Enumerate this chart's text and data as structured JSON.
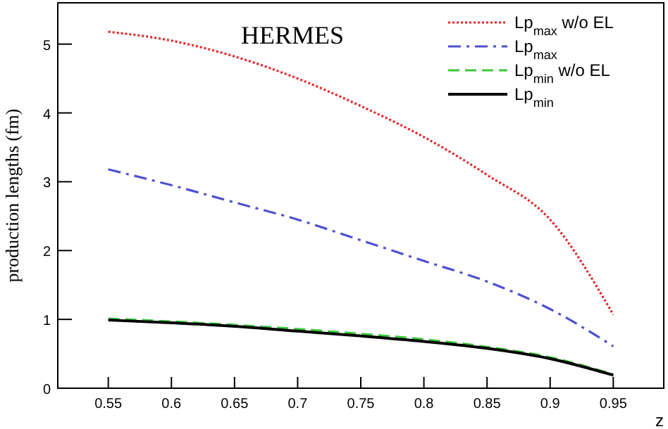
{
  "chart_data": {
    "type": "line",
    "xlabel": "z",
    "ylabel": "production lengths (fm)",
    "annotations": [
      "HERMES"
    ],
    "x": [
      0.55,
      0.6,
      0.65,
      0.7,
      0.75,
      0.8,
      0.85,
      0.9,
      0.95
    ],
    "series": [
      {
        "name": "Lp$_{max}$ w/o EL",
        "color": "#e8262a",
        "line_style": "dotted",
        "values": [
          5.18,
          5.05,
          4.82,
          4.5,
          4.1,
          3.65,
          3.1,
          2.45,
          1.07
        ]
      },
      {
        "name": "Lp$_{max}$",
        "color": "#5050d0",
        "line_style": "dashdot",
        "values": [
          3.18,
          2.95,
          2.7,
          2.45,
          2.15,
          1.85,
          1.55,
          1.15,
          0.61
        ]
      },
      {
        "name": "Lp$_{min}$ w/o EL",
        "color": "#3cc83c",
        "line_style": "dashed",
        "values": [
          1.01,
          0.97,
          0.92,
          0.86,
          0.79,
          0.71,
          0.6,
          0.45,
          0.2
        ]
      },
      {
        "name": "Lp$_{min}$",
        "color": "#000000",
        "line_style": "solid",
        "values": [
          0.99,
          0.95,
          0.9,
          0.83,
          0.76,
          0.68,
          0.58,
          0.43,
          0.19
        ]
      }
    ],
    "xlim": [
      0.51,
      0.99
    ],
    "ylim": [
      0,
      5.6
    ],
    "xticks": [
      0.55,
      0.6,
      0.65,
      0.7,
      0.75,
      0.8,
      0.85,
      0.9,
      0.95
    ],
    "yticks": [
      0,
      1,
      2,
      3,
      4,
      5
    ],
    "grid": false,
    "legend": "top right"
  }
}
